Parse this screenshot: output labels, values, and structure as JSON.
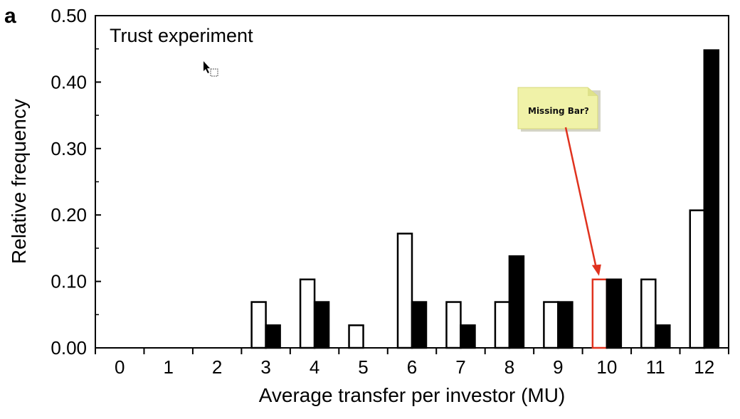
{
  "panel_letter": "a",
  "chart_data": {
    "type": "bar",
    "title": "Trust experiment",
    "xlabel": "Average transfer per investor (MU)",
    "ylabel": "Relative frequency",
    "categories": [
      "0",
      "1",
      "2",
      "3",
      "4",
      "5",
      "6",
      "7",
      "8",
      "9",
      "10",
      "11",
      "12"
    ],
    "ylim": [
      0,
      0.5
    ],
    "yticks": [
      "0.00",
      "0.10",
      "0.20",
      "0.30",
      "0.40",
      "0.50"
    ],
    "grid": false,
    "series": [
      {
        "style": "white",
        "values": [
          0,
          0,
          0,
          0.069,
          0.103,
          0.034,
          0.172,
          0.069,
          0.069,
          0.069,
          0.103,
          0.103,
          0.207
        ]
      },
      {
        "style": "black",
        "values": [
          0,
          0,
          0,
          0.034,
          0.069,
          0,
          0.069,
          0.034,
          0.138,
          0.069,
          0.103,
          0.034,
          0.448
        ]
      }
    ],
    "annotation": {
      "note": "Missing Bar?",
      "target_category": "10",
      "highlight_color": "#e0321e",
      "note_color": "#f0f2a8"
    }
  }
}
